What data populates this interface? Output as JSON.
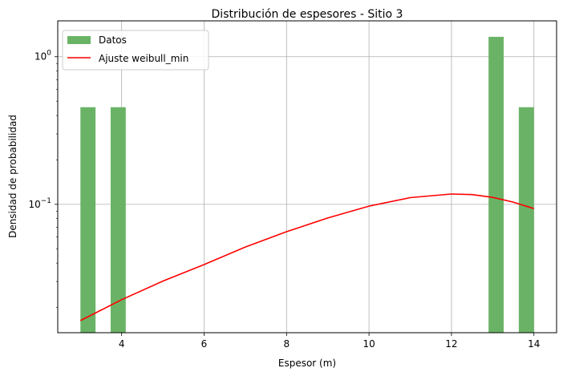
{
  "chart_data": {
    "type": "bar",
    "title": "Distribución de espesores - Sitio 3",
    "xlabel": "Espesor (m)",
    "ylabel": "Densidad de probabilidad",
    "xlim": [
      2.45,
      14.55
    ],
    "ylim": [
      0.0135,
      1.75
    ],
    "yscale": "log",
    "grid": true,
    "legend_position": "top-left",
    "x_ticks": [
      {
        "value": 4,
        "label": "4"
      },
      {
        "value": 6,
        "label": "6"
      },
      {
        "value": 8,
        "label": "8"
      },
      {
        "value": 10,
        "label": "10"
      },
      {
        "value": 12,
        "label": "12"
      },
      {
        "value": 14,
        "label": "14"
      }
    ],
    "y_ticks": [
      {
        "value": 0.1,
        "base": "10",
        "exp": "−1"
      },
      {
        "value": 1,
        "base": "10",
        "exp": "0"
      }
    ],
    "series": [
      {
        "name": "Datos",
        "kind": "histogram",
        "color": "#6ab366",
        "bins": [
          {
            "x0": 3.0,
            "x1": 3.3667,
            "value": 0.455
          },
          {
            "x0": 3.7333,
            "x1": 4.1,
            "value": 0.455
          },
          {
            "x0": 12.9,
            "x1": 13.2667,
            "value": 1.364
          },
          {
            "x0": 13.6333,
            "x1": 14.0,
            "value": 0.455
          }
        ]
      },
      {
        "name": "Ajuste weibull_min",
        "kind": "line",
        "color": "#ff0000",
        "x": [
          3,
          4,
          5,
          6,
          7,
          8,
          9,
          10,
          11,
          12,
          12.5,
          13,
          13.5,
          14
        ],
        "values": [
          0.0163,
          0.0226,
          0.0302,
          0.0391,
          0.0514,
          0.0653,
          0.0808,
          0.0972,
          0.111,
          0.1175,
          0.1165,
          0.1115,
          0.1035,
          0.0935
        ]
      }
    ]
  }
}
